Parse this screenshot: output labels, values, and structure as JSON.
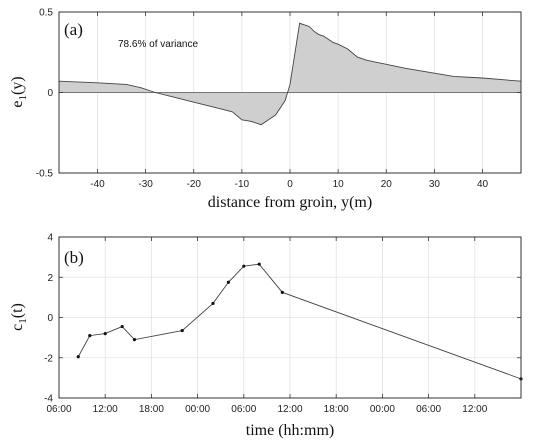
{
  "chart_data": [
    {
      "type": "area",
      "panel_label": "(a)",
      "annotation": "78.6% of variance",
      "xlabel": "distance from groin, y(m)",
      "ylabel_main": "e",
      "ylabel_sub": "1",
      "ylabel_suffix": "(y)",
      "xlim": [
        -48,
        48
      ],
      "ylim": [
        -0.5,
        0.5
      ],
      "xticks": [
        -40,
        -30,
        -20,
        -10,
        0,
        10,
        20,
        30,
        40
      ],
      "yticks": [
        -0.5,
        0,
        0.5
      ],
      "yticklabels": [
        "-0.5",
        "0",
        "0.5"
      ],
      "grid": true,
      "fill_color": "#cfcfcf",
      "line_color": "#444444",
      "x": [
        -48,
        -40,
        -34,
        -31,
        -28,
        -24,
        -20,
        -16,
        -12,
        -10,
        -8,
        -6,
        -5,
        -4,
        -3,
        -1,
        0,
        2,
        4,
        5,
        6,
        7,
        8,
        9,
        10,
        12,
        14,
        16,
        24,
        30,
        34,
        40,
        48
      ],
      "y": [
        0.07,
        0.06,
        0.05,
        0.03,
        0.0,
        -0.03,
        -0.06,
        -0.09,
        -0.12,
        -0.17,
        -0.18,
        -0.2,
        -0.18,
        -0.16,
        -0.14,
        -0.05,
        0.05,
        0.43,
        0.41,
        0.38,
        0.36,
        0.35,
        0.33,
        0.31,
        0.3,
        0.27,
        0.22,
        0.2,
        0.15,
        0.12,
        0.1,
        0.09,
        0.07
      ]
    },
    {
      "type": "line",
      "panel_label": "(b)",
      "xlabel": "time (hh:mm)",
      "ylabel_main": "c",
      "ylabel_sub": "1",
      "ylabel_suffix": "(t)",
      "xlim": [
        0,
        60
      ],
      "ylim": [
        -4,
        4
      ],
      "xticks": [
        0,
        6,
        12,
        18,
        24,
        30,
        36,
        42,
        48,
        54,
        60
      ],
      "xticklabels": [
        "06:00",
        "12:00",
        "18:00",
        "00:00",
        "06:00",
        "12:00",
        "18:00",
        "00:00",
        "06:00",
        "12:00",
        ""
      ],
      "yticks": [
        -4,
        -2,
        0,
        2,
        4
      ],
      "yticklabels": [
        "-4",
        "-2",
        "0",
        "2",
        "4"
      ],
      "grid": true,
      "line_color": "#444444",
      "x": [
        2.5,
        4.0,
        6.0,
        8.2,
        9.8,
        16.0,
        20.0,
        22.0,
        24.0,
        26.0,
        29.0,
        61.0
      ],
      "y": [
        -1.95,
        -0.9,
        -0.8,
        -0.45,
        -1.1,
        -0.65,
        0.7,
        1.75,
        2.55,
        2.65,
        1.25,
        -3.05
      ]
    }
  ]
}
